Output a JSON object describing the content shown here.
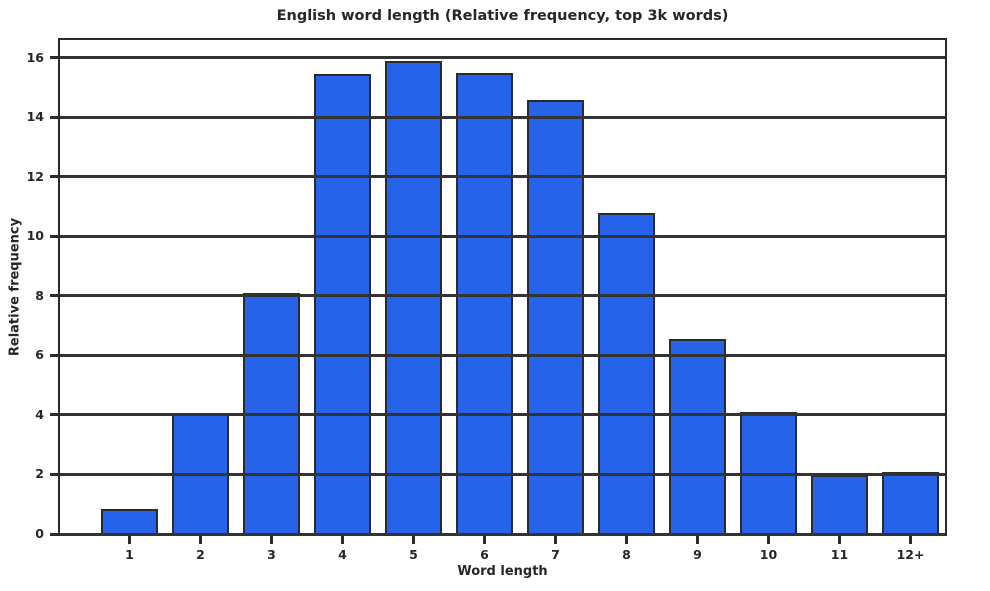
{
  "chart_data": {
    "type": "bar",
    "title": "English word length (Relative frequency, top 3k words)",
    "xlabel": "Word length",
    "ylabel": "Relative frequency",
    "categories": [
      "1",
      "2",
      "3",
      "4",
      "5",
      "6",
      "7",
      "8",
      "9",
      "10",
      "11",
      "12+"
    ],
    "values": [
      0.85,
      4.05,
      8.1,
      15.45,
      15.9,
      15.5,
      14.6,
      10.8,
      6.55,
      4.1,
      1.97,
      2.1
    ],
    "yticks": [
      0,
      2,
      4,
      6,
      8,
      10,
      12,
      14,
      16
    ],
    "ylim": [
      0,
      16.6
    ],
    "grid": true,
    "grid_on_top_of_bars": true,
    "legend": "none",
    "colors": {
      "bar_fill": "#2563eb",
      "bar_edge": "#2b2b2b",
      "grid_line": "#333333",
      "spine": "#2b2b2b",
      "text": "#262626",
      "background": "#ffffff"
    }
  }
}
